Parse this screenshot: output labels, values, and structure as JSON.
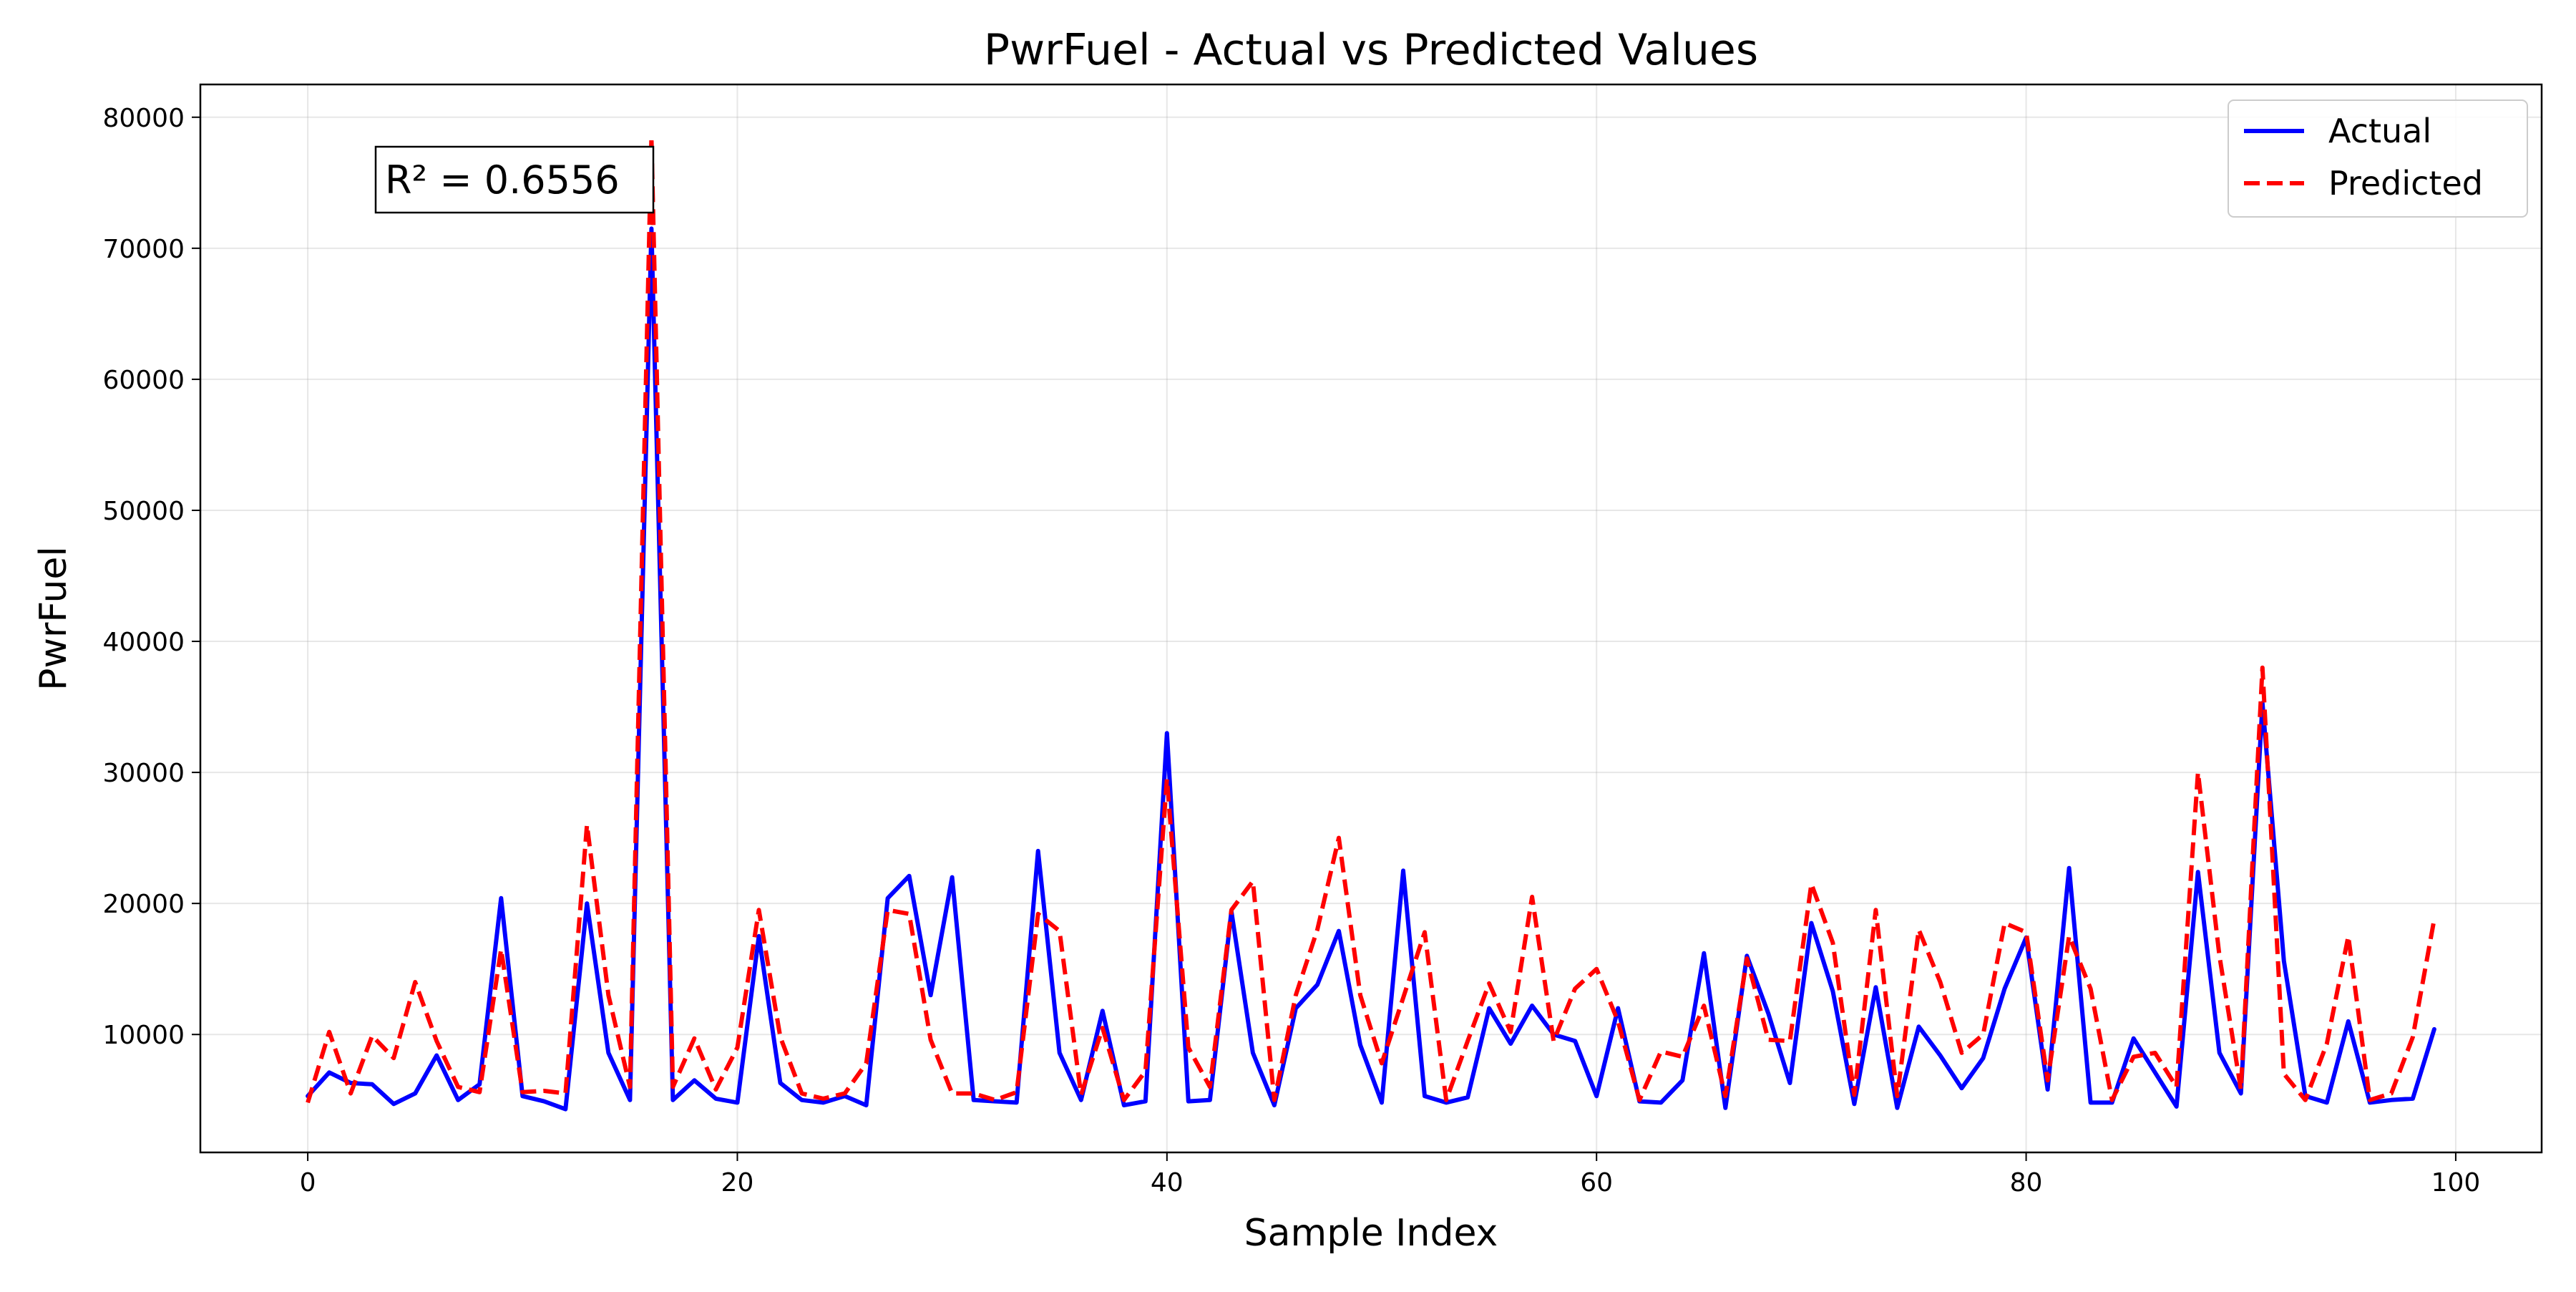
{
  "chart_data": {
    "type": "line",
    "title": "PwrFuel - Actual vs Predicted Values",
    "xlabel": "Sample Index",
    "ylabel": "PwrFuel",
    "xlim": [
      -5,
      104
    ],
    "ylim": [
      1000,
      82500
    ],
    "x_ticks": [
      0,
      20,
      40,
      60,
      80,
      100
    ],
    "y_ticks": [
      10000,
      20000,
      30000,
      40000,
      50000,
      60000,
      70000,
      80000
    ],
    "grid": true,
    "legend_position": "top-right",
    "annotation": "R² = 0.6556",
    "series": [
      {
        "name": "Actual",
        "color": "#0000ff",
        "style": "solid",
        "values": [
          5300,
          7100,
          6300,
          6200,
          4700,
          5500,
          8400,
          5000,
          6200,
          20400,
          5300,
          4900,
          4300,
          20000,
          8600,
          5000,
          71500,
          5000,
          6500,
          5100,
          4800,
          17500,
          6300,
          5000,
          4800,
          5300,
          4600,
          20400,
          22100,
          13000,
          22000,
          5000,
          4900,
          4800,
          24000,
          8600,
          5000,
          11800,
          4600,
          4900,
          33000,
          4900,
          5000,
          19400,
          8600,
          4600,
          12000,
          13800,
          17900,
          9200,
          4800,
          22500,
          5300,
          4800,
          5200,
          12000,
          9300,
          12200,
          10000,
          9500,
          5300,
          12000,
          4900,
          4800,
          6500,
          16200,
          4400,
          16000,
          11600,
          6300,
          18500,
          13300,
          4700,
          13600,
          4400,
          10600,
          8400,
          5900,
          8200,
          13500,
          17400,
          5800,
          22700,
          4800,
          4800,
          9700,
          7100,
          4500,
          22400,
          8600,
          5500,
          35300,
          15600,
          5300,
          4800,
          11000,
          4800,
          5000,
          5100,
          10400
        ]
      },
      {
        "name": "Predicted",
        "color": "#ff0000",
        "style": "dashed",
        "values": [
          4800,
          10200,
          5500,
          9900,
          8200,
          14000,
          9500,
          6000,
          5600,
          16500,
          5600,
          5700,
          5500,
          26000,
          13000,
          6000,
          78500,
          6000,
          9700,
          5800,
          9000,
          19500,
          9800,
          5500,
          5100,
          5500,
          7800,
          19500,
          19200,
          9600,
          5500,
          5500,
          5000,
          5600,
          19200,
          17900,
          5400,
          10500,
          5000,
          7200,
          29500,
          9000,
          6000,
          19500,
          21700,
          5000,
          13000,
          18000,
          25000,
          13000,
          7800,
          12800,
          17800,
          5000,
          9500,
          13900,
          10200,
          20500,
          9500,
          13500,
          15000,
          11000,
          5000,
          8700,
          8300,
          12200,
          5300,
          15800,
          9600,
          9500,
          21500,
          17000,
          5400,
          19500,
          5300,
          18000,
          14000,
          8600,
          10000,
          18500,
          17800,
          6500,
          17500,
          13500,
          5000,
          8300,
          8600,
          6000,
          30000,
          16000,
          5800,
          38000,
          7000,
          5000,
          9300,
          17500,
          5000,
          5500,
          9800,
          18800
        ]
      }
    ]
  }
}
